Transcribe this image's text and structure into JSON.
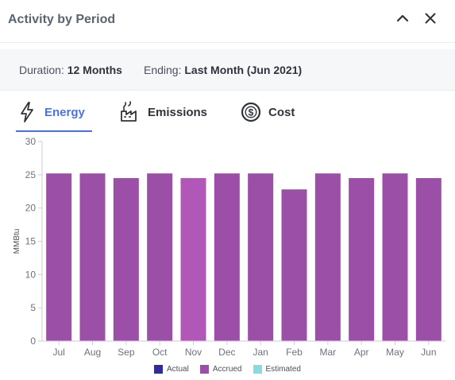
{
  "header": {
    "title": "Activity by Period"
  },
  "meta": {
    "duration_label": "Duration:",
    "duration_value": "12 Months",
    "ending_label": "Ending:",
    "ending_value": "Last Month (Jun 2021)"
  },
  "tabs": [
    {
      "label": "Energy",
      "icon": "lightning-icon",
      "active": true
    },
    {
      "label": "Emissions",
      "icon": "factory-icon",
      "active": false
    },
    {
      "label": "Cost",
      "icon": "dollar-coin-icon",
      "active": false
    }
  ],
  "colors": {
    "accent": "#4a72e8",
    "accrued": "#9c4fa6",
    "accrued_highlight": "#b057b8",
    "actual": "#2e2d9c",
    "estimated": "#86dce0",
    "axis_text": "#6b7280"
  },
  "chart_data": {
    "type": "bar",
    "ylabel": "MMBtu",
    "ylim": [
      0,
      30
    ],
    "yticks": [
      0,
      5,
      10,
      15,
      20,
      25,
      30
    ],
    "categories": [
      "Jul",
      "Aug",
      "Sep",
      "Oct",
      "Nov",
      "Dec",
      "Jan",
      "Feb",
      "Mar",
      "Apr",
      "May",
      "Jun"
    ],
    "series": [
      {
        "name": "Actual",
        "values": [
          0,
          0,
          0,
          0,
          0,
          0,
          0,
          0,
          0,
          0,
          0,
          0
        ]
      },
      {
        "name": "Accrued",
        "values": [
          25.2,
          25.2,
          24.5,
          25.2,
          24.5,
          25.2,
          25.2,
          22.8,
          25.2,
          24.5,
          25.2,
          24.5
        ]
      },
      {
        "name": "Estimated",
        "values": [
          0,
          0,
          0,
          0,
          0,
          0,
          0,
          0,
          0,
          0,
          0,
          0
        ]
      }
    ],
    "highlighted_category": "Nov",
    "legend": [
      "Actual",
      "Accrued",
      "Estimated"
    ],
    "legend_position": "bottom",
    "grid": false
  }
}
